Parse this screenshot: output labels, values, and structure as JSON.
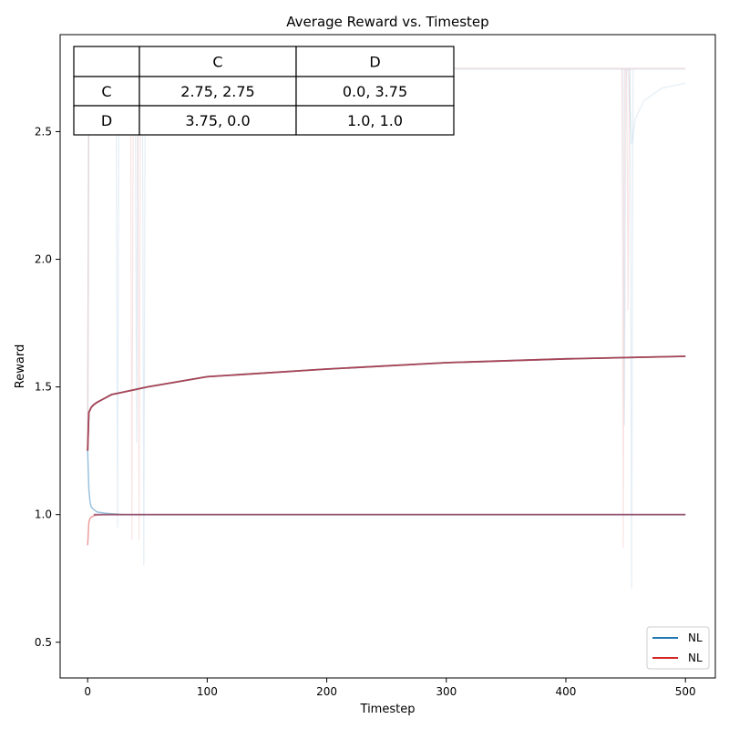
{
  "chart_data": {
    "type": "line",
    "title": "Average Reward vs. Timestep",
    "xlabel": "Timestep",
    "ylabel": "Reward",
    "xlim": [
      -23,
      525
    ],
    "ylim": [
      0.36,
      2.88
    ],
    "grid": false,
    "legend_position": "bottom-right",
    "x_ticks": [
      0,
      100,
      200,
      300,
      400,
      500
    ],
    "y_ticks": [
      0.5,
      1.0,
      1.5,
      2.0,
      2.5
    ],
    "x_tick_labels": [
      "0",
      "100",
      "200",
      "300",
      "400",
      "500"
    ],
    "y_tick_labels": [
      "0.5",
      "1.0",
      "1.5",
      "2.0",
      "2.5"
    ],
    "series": [
      {
        "name": "NL",
        "color": "#1f77b4",
        "x": [
          0,
          1,
          2,
          3,
          5,
          8,
          12,
          20,
          30,
          50,
          100,
          200,
          300,
          400,
          500
        ],
        "y": [
          1.25,
          1.4,
          1.41,
          1.42,
          1.43,
          1.44,
          1.45,
          1.47,
          1.48,
          1.5,
          1.54,
          1.57,
          1.595,
          1.61,
          1.62
        ]
      },
      {
        "name": "NL",
        "color": "#d62728",
        "x": [
          0,
          1,
          2,
          3,
          5,
          8,
          12,
          20,
          30,
          50,
          100,
          200,
          300,
          400,
          500
        ],
        "y": [
          1.25,
          1.4,
          1.41,
          1.42,
          1.43,
          1.44,
          1.45,
          1.47,
          1.48,
          1.5,
          1.54,
          1.57,
          1.595,
          1.61,
          1.62
        ]
      }
    ],
    "convergent_band": {
      "x": [
        0,
        1,
        2,
        3,
        5,
        8,
        15,
        30,
        60,
        100,
        500
      ],
      "blue_y": [
        1.25,
        1.1,
        1.05,
        1.03,
        1.02,
        1.01,
        1.005,
        1.0,
        1.0,
        1.0,
        1.0
      ],
      "red_y": [
        0.88,
        0.97,
        0.985,
        0.99,
        0.995,
        0.998,
        1.0,
        1.0,
        1.0,
        1.0,
        1.0
      ]
    },
    "faint_traces": {
      "top_level": 2.745,
      "rise_x": 1,
      "dips": [
        {
          "x": 25,
          "y": 0.95
        },
        {
          "x": 37,
          "y": 0.9
        },
        {
          "x": 41,
          "y": 1.28
        },
        {
          "x": 43,
          "y": 0.9
        },
        {
          "x": 47,
          "y": 0.8
        },
        {
          "x": 448,
          "y": 0.87
        },
        {
          "x": 449,
          "y": 1.35
        },
        {
          "x": 452,
          "y": 1.8
        },
        {
          "x": 455,
          "y": 0.71
        }
      ]
    },
    "payoff_table": {
      "columns": [
        "",
        "C",
        "D"
      ],
      "rows": [
        [
          "C",
          "2.75, 2.75",
          "0.0, 3.75"
        ],
        [
          "D",
          "3.75, 0.0",
          "1.0, 1.0"
        ]
      ]
    }
  }
}
